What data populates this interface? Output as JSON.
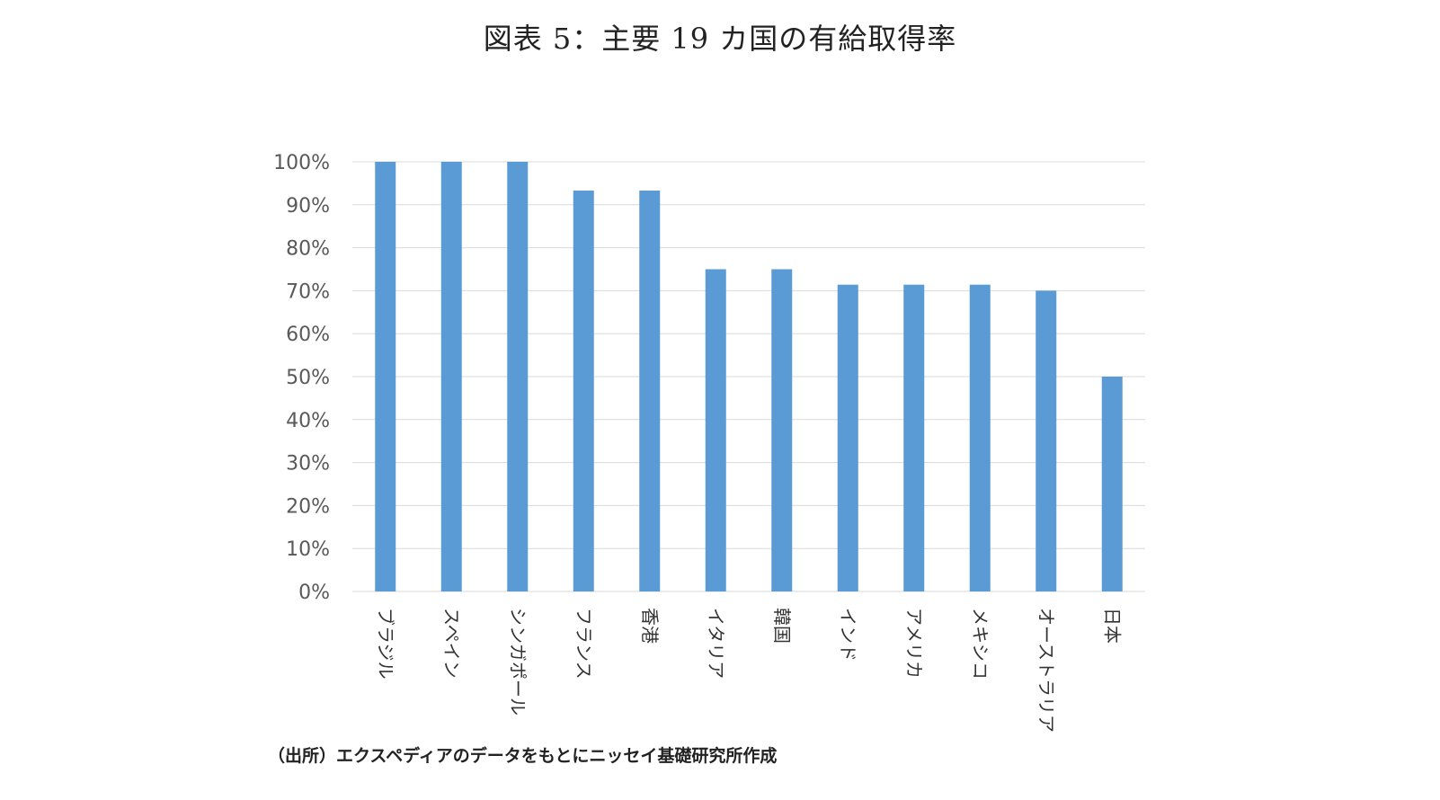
{
  "title": "図表 5：主要 19 カ国の有給取得率",
  "source_note": "（出所）エクスペディアのデータをもとにニッセイ基礎研究所作成",
  "colors": {
    "bar": "#5b9bd5",
    "grid": "#d9d9d9",
    "tick_text": "#595959"
  },
  "chart_data": {
    "type": "bar",
    "title": "図表 5：主要 19 カ国の有給取得率",
    "xlabel": "",
    "ylabel": "",
    "categories": [
      "ブラジル",
      "スペイン",
      "シンガポール",
      "フランス",
      "香港",
      "イタリア",
      "韓国",
      "インド",
      "アメリカ",
      "メキシコ",
      "オーストラリア",
      "日本"
    ],
    "values": [
      1.0,
      1.0,
      1.0,
      0.933,
      0.933,
      0.75,
      0.75,
      0.714,
      0.714,
      0.714,
      0.7,
      0.5
    ],
    "ylim": [
      0,
      1
    ],
    "yticks": [
      0,
      0.1,
      0.2,
      0.3,
      0.4,
      0.5,
      0.6,
      0.7,
      0.8,
      0.9,
      1.0
    ],
    "ytick_labels": [
      "0%",
      "10%",
      "20%",
      "30%",
      "40%",
      "50%",
      "60%",
      "70%",
      "80%",
      "90%",
      "100%"
    ],
    "grid": true,
    "legend": "none"
  }
}
